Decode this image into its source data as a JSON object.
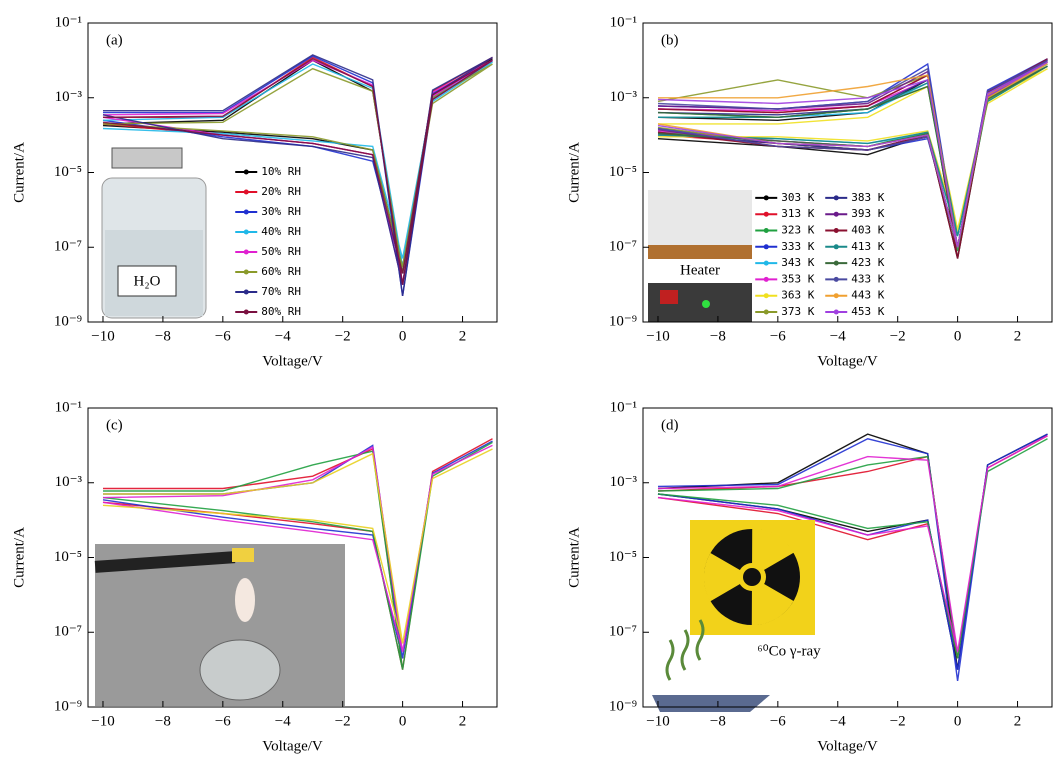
{
  "chart_data": [
    {
      "type": "line",
      "panel_label": "(a)",
      "xlabel": "Voltage/V",
      "ylabel": "Current/A",
      "log_y": true,
      "legend": "lower center",
      "legend_columns": 1,
      "inset_label": "H₂O",
      "xlim": [
        -10.5,
        3.15
      ],
      "ylim": [
        1e-09,
        0.1
      ],
      "xticks": [
        {
          "value": -10,
          "label": "−10"
        },
        {
          "value": -8,
          "label": "−8"
        },
        {
          "value": -6,
          "label": "−6"
        },
        {
          "value": -4,
          "label": "−4"
        },
        {
          "value": -2,
          "label": "−2"
        },
        0,
        2
      ],
      "yticks": [
        {
          "value": 1e-09,
          "label": "10⁻⁹"
        },
        {
          "value": 1e-07,
          "label": "10⁻⁷"
        },
        {
          "value": 1e-05,
          "label": "10⁻⁵"
        },
        {
          "value": 0.001,
          "label": "10⁻³"
        },
        {
          "value": 0.1,
          "label": "10⁻¹"
        }
      ],
      "x": [
        -10,
        -6,
        -3,
        -1,
        0,
        1,
        3,
        1,
        0,
        -1,
        -3,
        -6,
        -10
      ],
      "series": [
        {
          "name": "10% RH",
          "color": "#000000",
          "values": [
            0.0002,
            0.00025,
            0.01,
            0.0015,
            2e-08,
            0.0012,
            0.011,
            0.0012,
            3e-08,
            4e-05,
            8e-05,
            0.00012,
            0.00018
          ]
        },
        {
          "name": "20% RH",
          "color": "#e0102a",
          "values": [
            0.0003,
            0.0003,
            0.012,
            0.002,
            1e-08,
            0.001,
            0.012,
            0.0015,
            1e-08,
            3e-05,
            6e-05,
            0.0001,
            0.0002
          ]
        },
        {
          "name": "30% RH",
          "color": "#2030d0",
          "values": [
            0.0004,
            0.0004,
            0.013,
            0.0025,
            5e-09,
            0.0009,
            0.01,
            0.0013,
            2e-08,
            2e-05,
            5e-05,
            9e-05,
            0.00025
          ]
        },
        {
          "name": "40% RH",
          "color": "#20b8e8",
          "values": [
            0.00025,
            0.0003,
            0.008,
            0.0018,
            3e-08,
            0.0008,
            0.009,
            0.001,
            5e-08,
            5e-05,
            7e-05,
            0.00011,
            0.00015
          ]
        },
        {
          "name": "50% RH",
          "color": "#e020d0",
          "values": [
            0.00035,
            0.00038,
            0.01,
            0.0022,
            1e-08,
            0.0011,
            0.01,
            0.0014,
            1e-08,
            3e-05,
            6e-05,
            0.0001,
            0.0003
          ]
        },
        {
          "name": "60% RH",
          "color": "#8a9a2a",
          "values": [
            0.0002,
            0.00022,
            0.006,
            0.0015,
            2e-08,
            0.0007,
            0.008,
            0.001,
            3e-08,
            4e-05,
            9e-05,
            0.00013,
            0.0002
          ]
        },
        {
          "name": "70% RH",
          "color": "#2b2b8a",
          "values": [
            0.00045,
            0.00045,
            0.014,
            0.003,
            5e-09,
            0.0012,
            0.012,
            0.0016,
            1e-08,
            2.5e-05,
            5e-05,
            8e-05,
            0.00035
          ]
        },
        {
          "name": "80% RH",
          "color": "#7a1040",
          "values": [
            0.0003,
            0.00032,
            0.011,
            0.002,
            1e-08,
            0.0009,
            0.01,
            0.0012,
            2e-08,
            3e-05,
            6e-05,
            0.0001,
            0.00022
          ]
        }
      ]
    },
    {
      "type": "line",
      "panel_label": "(b)",
      "xlabel": "Voltage/V",
      "ylabel": "Current/A",
      "log_y": true,
      "legend": "lower center",
      "legend_columns": 2,
      "inset_label": "Heater",
      "xlim": [
        -10.5,
        3.15
      ],
      "ylim": [
        1e-09,
        0.1
      ],
      "xticks": [
        {
          "value": -10,
          "label": "−10"
        },
        {
          "value": -8,
          "label": "−8"
        },
        {
          "value": -6,
          "label": "−6"
        },
        {
          "value": -4,
          "label": "−4"
        },
        {
          "value": -2,
          "label": "−2"
        },
        0,
        2
      ],
      "yticks": [
        {
          "value": 1e-09,
          "label": "10⁻⁹"
        },
        {
          "value": 1e-07,
          "label": "10⁻⁷"
        },
        {
          "value": 1e-05,
          "label": "10⁻⁵"
        },
        {
          "value": 0.001,
          "label": "10⁻³"
        },
        {
          "value": 0.1,
          "label": "10⁻¹"
        }
      ],
      "x": [
        -10,
        -6,
        -3,
        -1,
        0,
        1,
        3,
        1,
        0,
        -1,
        -3,
        -6,
        -10
      ],
      "series": [
        {
          "name": "303 K",
          "color": "#000000",
          "values": [
            0.0003,
            0.00025,
            0.0004,
            0.003,
            5e-08,
            0.001,
            0.01,
            0.0015,
            5e-08,
            0.0001,
            3e-05,
            5e-05,
            8e-05
          ]
        },
        {
          "name": "313 K",
          "color": "#e0102a",
          "values": [
            0.0005,
            0.0004,
            0.0006,
            0.004,
            1e-07,
            0.0012,
            0.009,
            0.0013,
            1e-07,
            9e-05,
            4e-05,
            6e-05,
            0.0001
          ]
        },
        {
          "name": "323 K",
          "color": "#20a040",
          "values": [
            0.0004,
            0.0003,
            0.0005,
            0.002,
            8e-08,
            0.0008,
            0.007,
            0.001,
            8e-08,
            0.00012,
            5e-05,
            7e-05,
            0.00012
          ]
        },
        {
          "name": "333 K",
          "color": "#2030d0",
          "values": [
            0.0006,
            0.0005,
            0.0008,
            0.008,
            1e-07,
            0.0015,
            0.011,
            0.0016,
            1e-07,
            8e-05,
            4e-05,
            6e-05,
            0.00015
          ]
        },
        {
          "name": "343 K",
          "color": "#20b8e8",
          "values": [
            0.0003,
            0.0003,
            0.0004,
            0.0025,
            2e-07,
            0.0009,
            0.008,
            0.0011,
            2e-07,
            0.00011,
            6e-05,
            8e-05,
            0.0001
          ]
        },
        {
          "name": "353 K",
          "color": "#e020d0",
          "values": [
            0.0005,
            0.00045,
            0.0006,
            0.003,
            1e-07,
            0.001,
            0.009,
            0.0012,
            1e-07,
            0.0001,
            5e-05,
            7e-05,
            0.00013
          ]
        },
        {
          "name": "363 K",
          "color": "#f0e020",
          "values": [
            0.0002,
            0.0002,
            0.0003,
            0.002,
            3e-07,
            0.0007,
            0.006,
            0.0009,
            3e-07,
            0.00013,
            7e-05,
            9e-05,
            9e-05
          ]
        },
        {
          "name": "373 K",
          "color": "#8a9a2a",
          "values": [
            0.0008,
            0.003,
            0.001,
            0.004,
            1e-07,
            0.0011,
            0.009,
            0.0013,
            1e-07,
            9e-05,
            4e-05,
            6e-05,
            0.00016
          ]
        },
        {
          "name": "383 K",
          "color": "#2b2b8a",
          "values": [
            0.0004,
            0.00035,
            0.0005,
            0.003,
            1e-07,
            0.001,
            0.01,
            0.0014,
            1e-07,
            0.0001,
            4e-05,
            6e-05,
            0.00011
          ]
        },
        {
          "name": "393 K",
          "color": "#6a1a8a",
          "values": [
            0.0006,
            0.0005,
            0.0007,
            0.005,
            1e-07,
            0.0012,
            0.01,
            0.0015,
            1e-07,
            9e-05,
            4e-05,
            5e-05,
            0.00014
          ]
        },
        {
          "name": "403 K",
          "color": "#8a1030",
          "values": [
            0.0005,
            0.0004,
            0.0006,
            0.004,
            5e-08,
            0.0011,
            0.011,
            0.0014,
            5e-08,
            0.0001,
            4e-05,
            5e-05,
            0.00012
          ]
        },
        {
          "name": "413 K",
          "color": "#1a8a8a",
          "values": [
            0.0003,
            0.0003,
            0.0005,
            0.0025,
            2e-07,
            0.0008,
            0.007,
            0.001,
            2e-07,
            0.00012,
            6e-05,
            8e-05,
            0.0001
          ]
        },
        {
          "name": "423 K",
          "color": "#3a6a3a",
          "values": [
            0.0004,
            0.0003,
            0.0005,
            0.002,
            1e-07,
            0.0009,
            0.007,
            0.001,
            1e-07,
            0.00011,
            5e-05,
            7e-05,
            0.00011
          ]
        },
        {
          "name": "433 K",
          "color": "#4a4aa0",
          "values": [
            0.0007,
            0.0005,
            0.0008,
            0.006,
            1e-07,
            0.0013,
            0.01,
            0.0015,
            1e-07,
            9e-05,
            4e-05,
            5e-05,
            0.00015
          ]
        },
        {
          "name": "443 K",
          "color": "#f0a030",
          "values": [
            0.001,
            0.001,
            0.002,
            0.004,
            1e-07,
            0.001,
            0.008,
            0.0012,
            1e-07,
            0.0001,
            5e-05,
            6e-05,
            0.0002
          ]
        },
        {
          "name": "453 K",
          "color": "#a040e0",
          "values": [
            0.0009,
            0.0007,
            0.001,
            0.003,
            1e-07,
            0.0011,
            0.009,
            0.0013,
            1e-07,
            0.0001,
            5e-05,
            6e-05,
            0.00018
          ]
        }
      ]
    },
    {
      "type": "line",
      "panel_label": "(c)",
      "xlabel": "Voltage/V",
      "ylabel": "Current/A",
      "log_y": true,
      "xlim": [
        -10.5,
        3.15
      ],
      "ylim": [
        1e-09,
        0.1
      ],
      "xticks": [
        {
          "value": -10,
          "label": "−10"
        },
        {
          "value": -8,
          "label": "−8"
        },
        {
          "value": -6,
          "label": "−6"
        },
        {
          "value": -4,
          "label": "−4"
        },
        {
          "value": -2,
          "label": "−2"
        },
        0,
        2
      ],
      "yticks": [
        {
          "value": 1e-09,
          "label": "10⁻⁹"
        },
        {
          "value": 1e-07,
          "label": "10⁻⁷"
        },
        {
          "value": 1e-05,
          "label": "10⁻⁵"
        },
        {
          "value": 0.001,
          "label": "10⁻³"
        },
        {
          "value": 0.1,
          "label": "10⁻¹"
        }
      ],
      "x": [
        -10,
        -6,
        -3,
        -1,
        0,
        1,
        3,
        1,
        0,
        -1,
        -3,
        -6,
        -10
      ],
      "series": [
        {
          "color": "#e0102a",
          "values": [
            0.0007,
            0.0007,
            0.0015,
            0.008,
            1e-08,
            0.002,
            0.015,
            0.002,
            1e-08,
            5e-05,
            8e-05,
            0.00015,
            0.0003
          ]
        },
        {
          "color": "#2030d0",
          "values": [
            0.0005,
            0.0005,
            0.001,
            0.01,
            2e-08,
            0.0018,
            0.013,
            0.0018,
            2e-08,
            4e-05,
            6e-05,
            0.00012,
            0.00035
          ]
        },
        {
          "color": "#20a040",
          "values": [
            0.0006,
            0.0006,
            0.003,
            0.007,
            1e-08,
            0.0015,
            0.012,
            0.0015,
            1e-08,
            5e-05,
            9e-05,
            0.00018,
            0.0004
          ]
        },
        {
          "color": "#e020d0",
          "values": [
            0.0004,
            0.00045,
            0.0012,
            0.009,
            3e-08,
            0.0017,
            0.01,
            0.0017,
            3e-08,
            3e-05,
            5e-05,
            0.0001,
            0.0003
          ]
        },
        {
          "color": "#e8d020",
          "values": [
            0.0005,
            0.0005,
            0.001,
            0.006,
            5e-08,
            0.0013,
            0.008,
            0.0013,
            5e-08,
            6e-05,
            0.0001,
            0.00015,
            0.00025
          ]
        }
      ]
    },
    {
      "type": "line",
      "panel_label": "(d)",
      "xlabel": "Voltage/V",
      "ylabel": "Current/A",
      "log_y": true,
      "inset_label": "⁶⁰Co γ-ray",
      "xlim": [
        -10.5,
        3.15
      ],
      "ylim": [
        1e-09,
        0.1
      ],
      "xticks": [
        {
          "value": -10,
          "label": "−10"
        },
        {
          "value": -8,
          "label": "−8"
        },
        {
          "value": -6,
          "label": "−6"
        },
        {
          "value": -4,
          "label": "−4"
        },
        {
          "value": -2,
          "label": "−2"
        },
        0,
        2
      ],
      "yticks": [
        {
          "value": 1e-09,
          "label": "10⁻⁹"
        },
        {
          "value": 1e-07,
          "label": "10⁻⁷"
        },
        {
          "value": 1e-05,
          "label": "10⁻⁵"
        },
        {
          "value": 0.001,
          "label": "10⁻³"
        },
        {
          "value": 0.1,
          "label": "10⁻¹"
        }
      ],
      "x": [
        -10,
        -6,
        -3,
        -1,
        0,
        1,
        3,
        1,
        0,
        -1,
        -3,
        -6,
        -10
      ],
      "series": [
        {
          "color": "#000000",
          "values": [
            0.0007,
            0.001,
            0.02,
            0.006,
            1e-08,
            0.003,
            0.02,
            0.003,
            1e-08,
            0.0001,
            5e-05,
            0.0002,
            0.0005
          ]
        },
        {
          "color": "#e0102a",
          "values": [
            0.0006,
            0.0008,
            0.002,
            0.005,
            2e-08,
            0.0025,
            0.018,
            0.0025,
            2e-08,
            8e-05,
            3e-05,
            0.00015,
            0.0004
          ]
        },
        {
          "color": "#2030d0",
          "values": [
            0.0008,
            0.0009,
            0.015,
            0.006,
            5e-09,
            0.003,
            0.02,
            0.003,
            1e-08,
            0.0001,
            4e-05,
            0.0002,
            0.0005
          ]
        },
        {
          "color": "#20a040",
          "values": [
            0.0006,
            0.0007,
            0.003,
            0.005,
            2e-08,
            0.002,
            0.015,
            0.002,
            2e-08,
            9e-05,
            6e-05,
            0.00025,
            0.0005
          ]
        },
        {
          "color": "#e020d0",
          "values": [
            0.0007,
            0.0008,
            0.005,
            0.004,
            3e-08,
            0.0025,
            0.018,
            0.0025,
            3e-08,
            7e-05,
            4e-05,
            0.00018,
            0.0004
          ]
        }
      ]
    }
  ]
}
